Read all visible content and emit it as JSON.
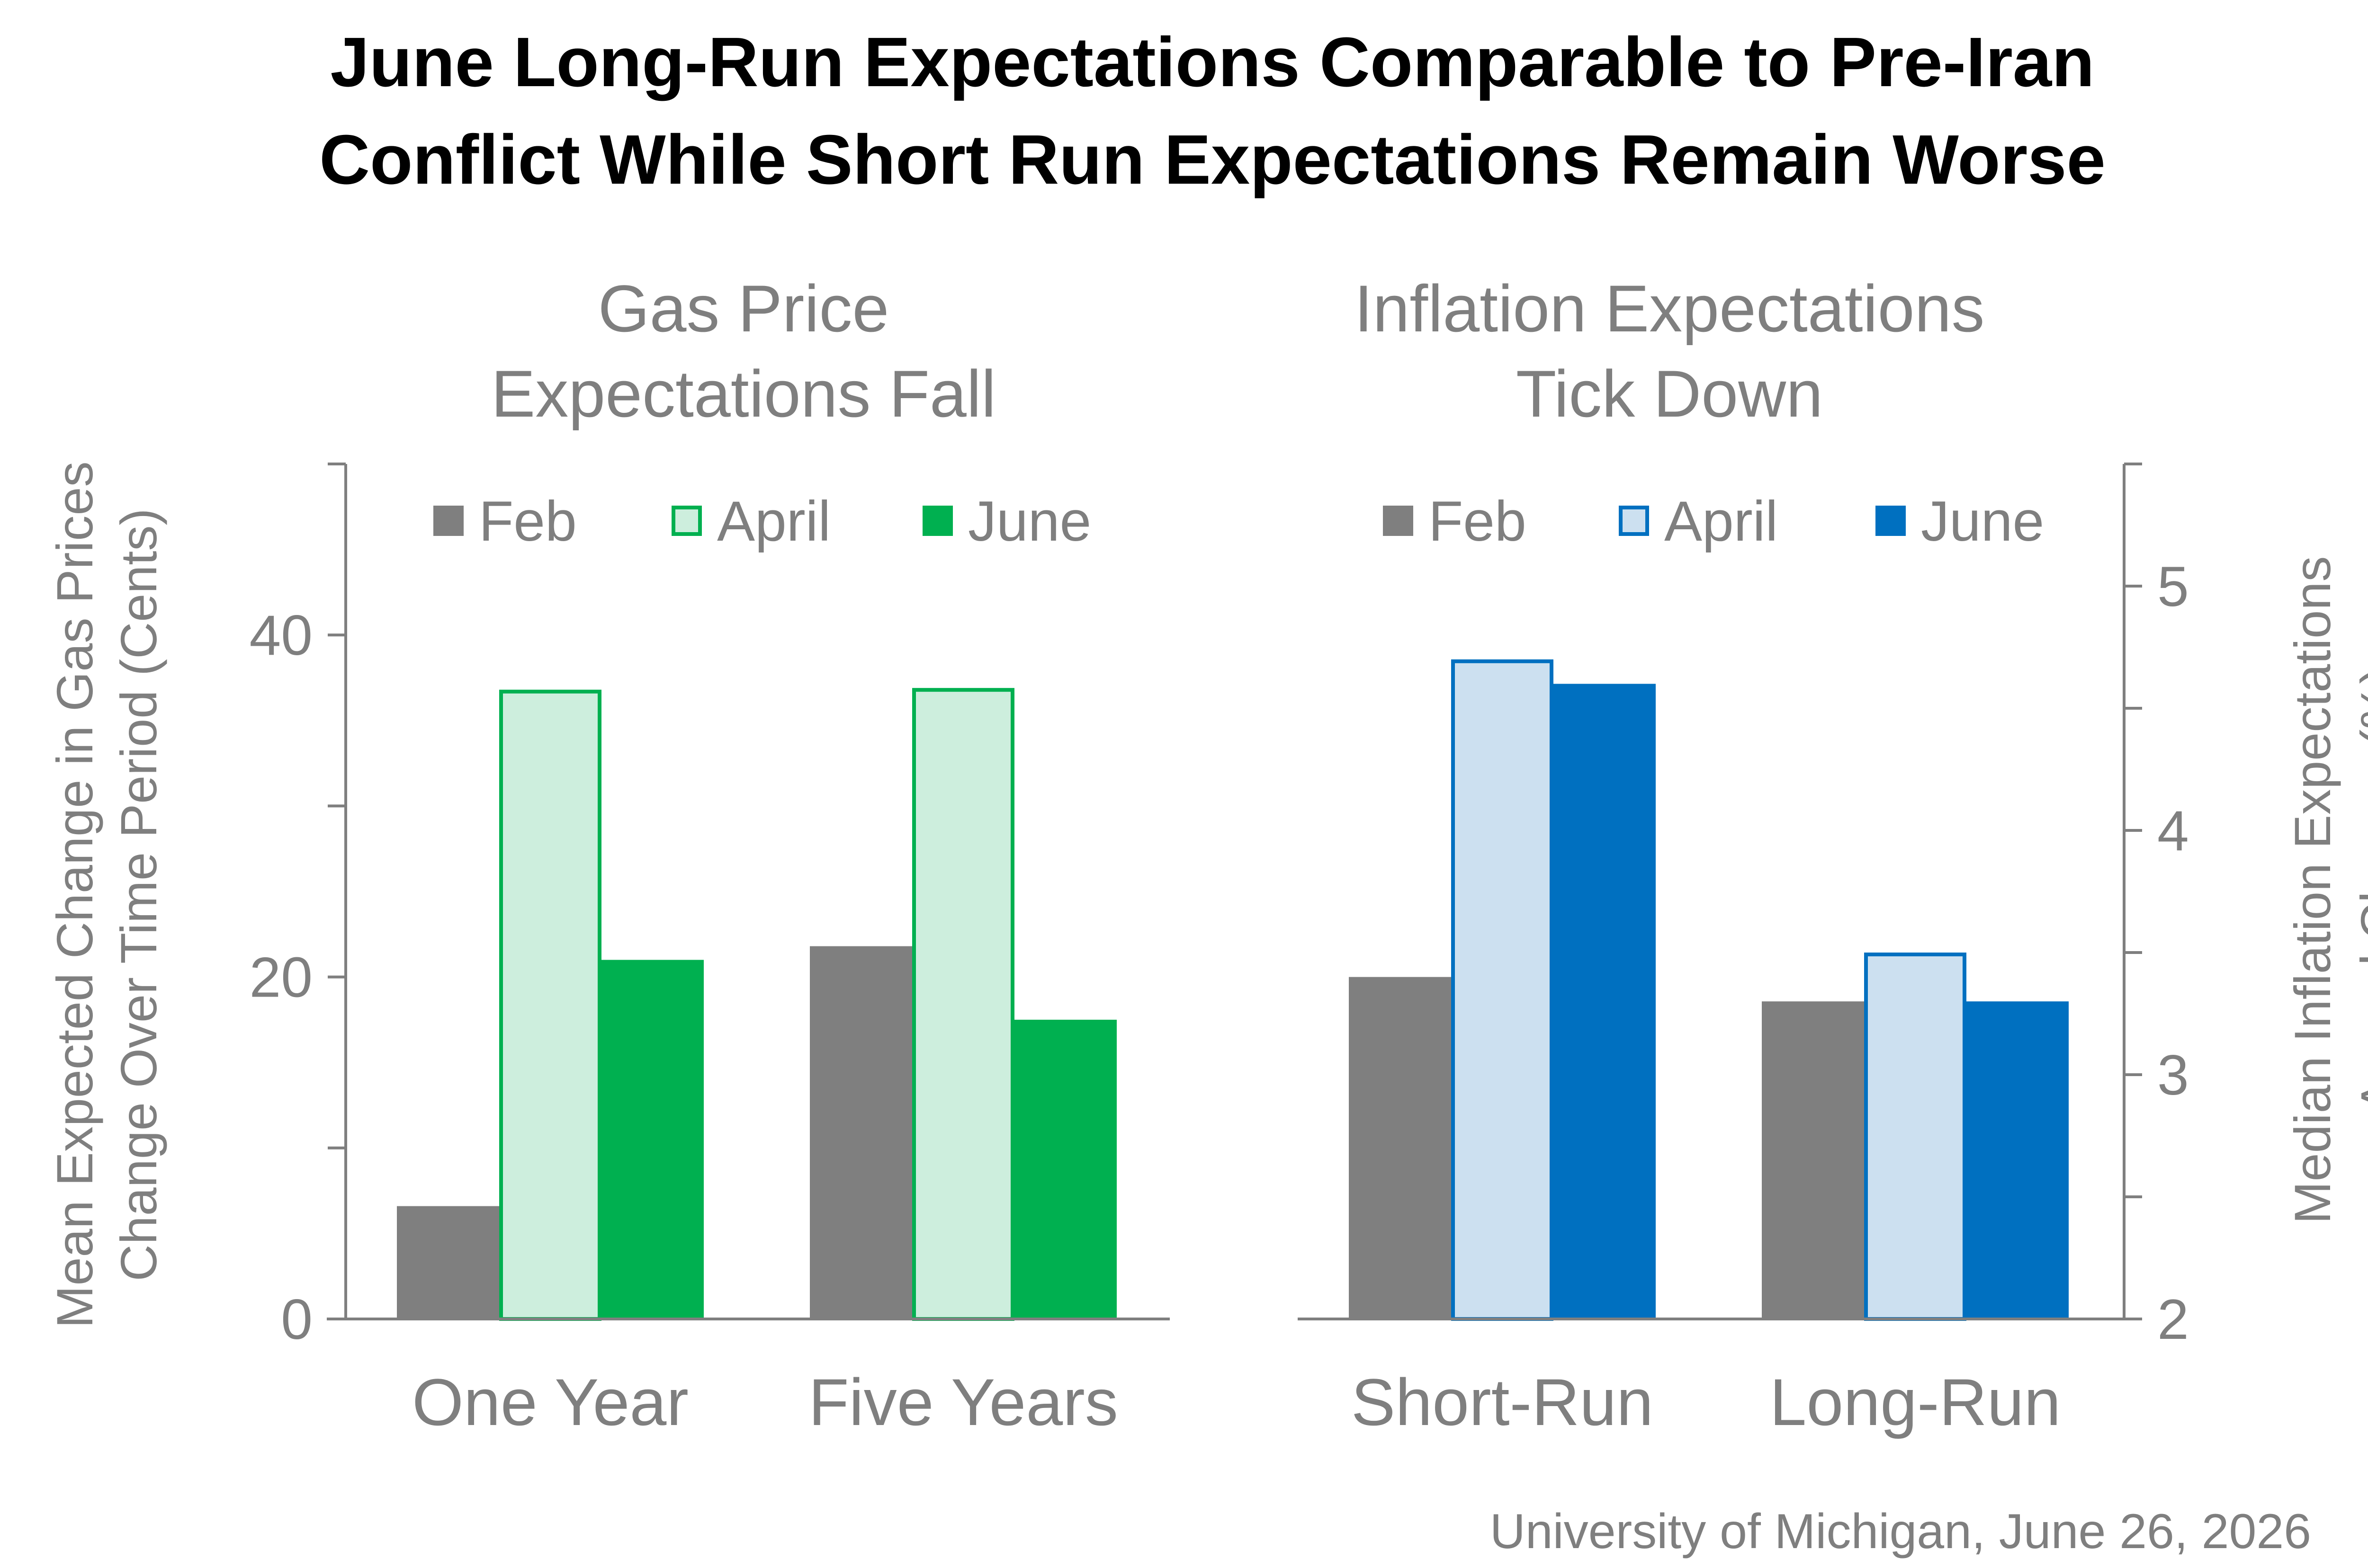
{
  "title_line1": "June Long-Run Expectations Comparable to Pre-Iran",
  "title_line2": "Conflict While Short Run Expectations Remain Worse",
  "source": "University of Michigan, June 26, 2026",
  "colors": {
    "feb": "#7f7f7f",
    "gas_april_fill": "#cdeedd",
    "gas_april_stroke": "#00b050",
    "gas_june": "#00b050",
    "infl_april_fill": "#cce0f0",
    "infl_april_stroke": "#0070c0",
    "infl_june": "#0070c0",
    "axis": "#7f7f7f",
    "text_gray": "#7f7f7f"
  },
  "chart_data": [
    {
      "type": "bar",
      "subtitle_line1": "Gas Price",
      "subtitle_line2": "Expectations Fall",
      "ylabel_line1": "Mean Expected Change in Gas Prices",
      "ylabel_line2": "Change Over Time Period (Cents)",
      "categories": [
        "One Year",
        "Five Years"
      ],
      "series": [
        {
          "name": "Feb",
          "values": [
            6.6,
            21.8
          ]
        },
        {
          "name": "April",
          "values": [
            36.8,
            36.9
          ]
        },
        {
          "name": "June",
          "values": [
            21.0,
            17.5
          ]
        }
      ],
      "ylim": [
        0,
        50
      ],
      "yticks": [
        0,
        20,
        40
      ],
      "legend": "top",
      "grid": false
    },
    {
      "type": "bar",
      "subtitle_line1": "Inflation Expectations",
      "subtitle_line2": "Tick Down",
      "ylabel_line1": "Median Inflation Expectations",
      "ylabel_line2": "Annual Change (%)",
      "categories": [
        "Short-Run",
        "Long-Run"
      ],
      "series": [
        {
          "name": "Feb",
          "values": [
            3.4,
            3.3
          ]
        },
        {
          "name": "April",
          "values": [
            4.7,
            3.5
          ]
        },
        {
          "name": "June",
          "values": [
            4.6,
            3.3
          ]
        }
      ],
      "ylim": [
        2,
        5.5
      ],
      "yticks": [
        2,
        3,
        4,
        5
      ],
      "y_axis_side": "right",
      "legend": "top",
      "grid": false
    }
  ]
}
